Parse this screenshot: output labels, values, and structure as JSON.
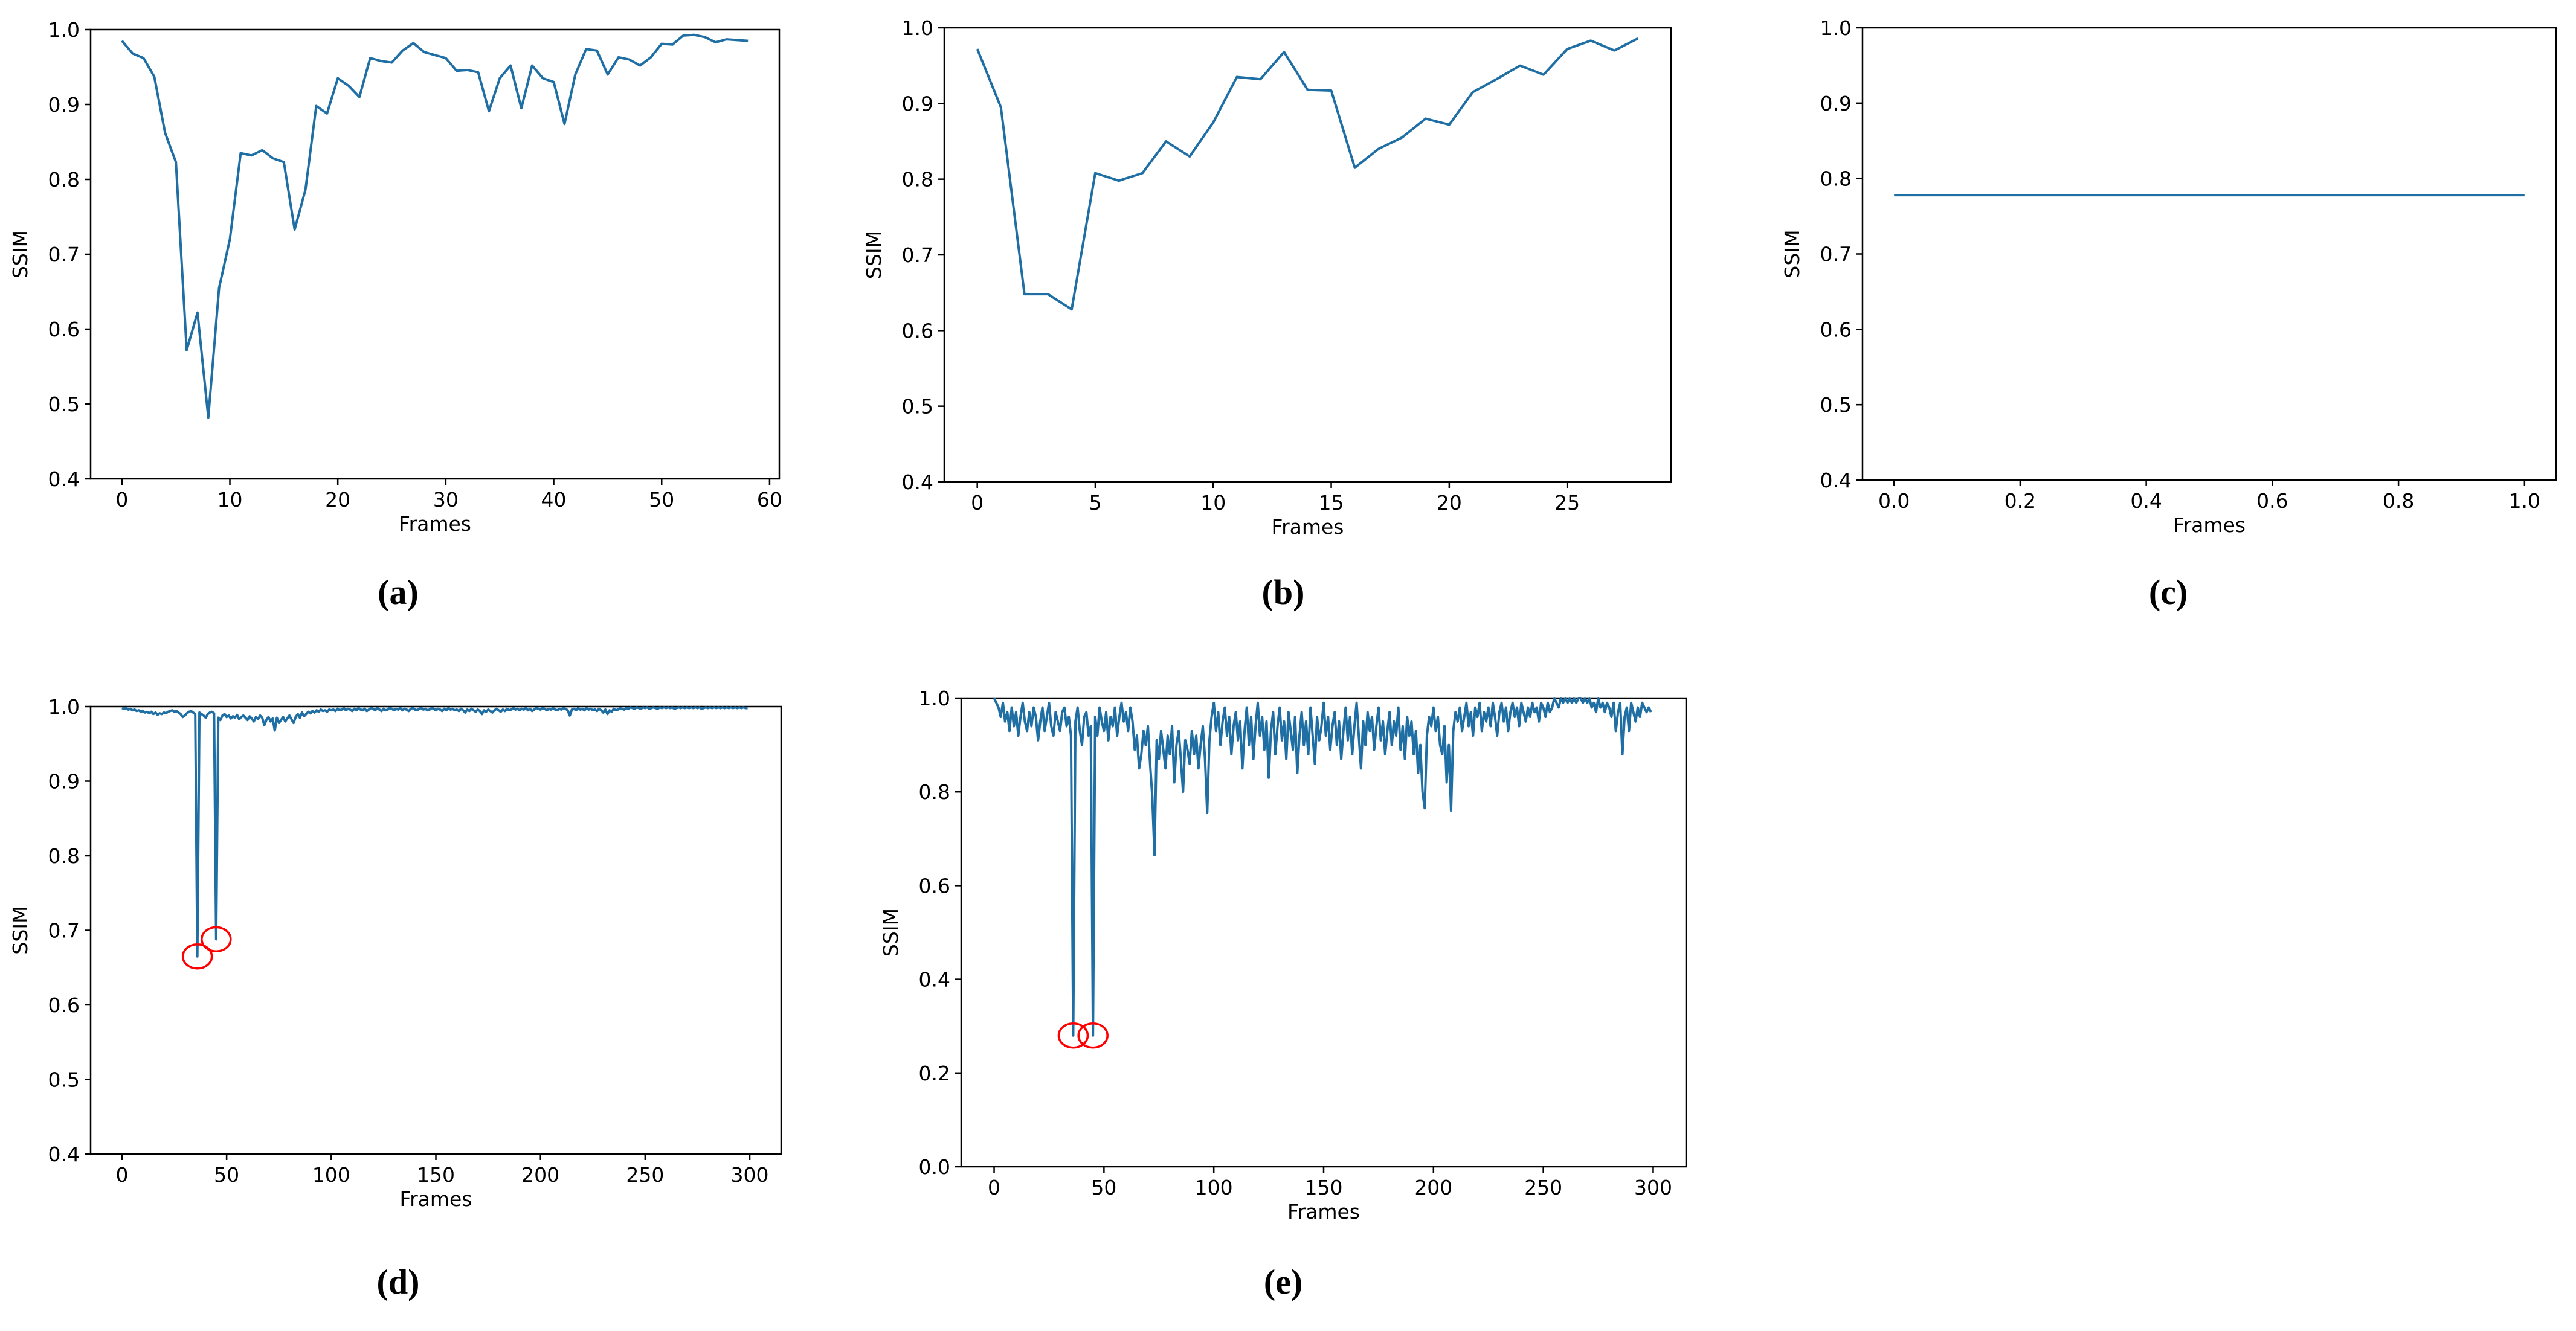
{
  "chart_data": [
    {
      "type": "line",
      "caption": "(a)",
      "xlabel": "Frames",
      "ylabel": "SSIM",
      "color": "#1f6fa5",
      "values": [
        0.985,
        0.968,
        0.962,
        0.937,
        0.862,
        0.823,
        0.572,
        0.622,
        0.482,
        0.655,
        0.72,
        0.835,
        0.832,
        0.839,
        0.828,
        0.823,
        0.733,
        0.786,
        0.898,
        0.888,
        0.935,
        0.925,
        0.91,
        0.962,
        0.958,
        0.956,
        0.972,
        0.982,
        0.97,
        0.966,
        0.962,
        0.945,
        0.946,
        0.943,
        0.891,
        0.935,
        0.952,
        0.895,
        0.952,
        0.935,
        0.93,
        0.874,
        0.94,
        0.974,
        0.972,
        0.94,
        0.963,
        0.96,
        0.952,
        0.963,
        0.981,
        0.98,
        0.992,
        0.993,
        0.99,
        0.983,
        0.987,
        0.986,
        0.985
      ],
      "xlim": [
        -2.9,
        60.9
      ],
      "xticks": [
        0,
        10,
        20,
        30,
        40,
        50,
        60
      ],
      "ylim": [
        0.4,
        1
      ],
      "yticks": [
        0.4,
        0.5,
        0.6,
        0.7,
        0.8,
        0.9,
        {
          "value": 1,
          "label": "1.0"
        }
      ]
    },
    {
      "type": "line",
      "caption": "(b)",
      "xlabel": "Frames",
      "ylabel": "SSIM",
      "color": "#1f6fa5",
      "values": [
        0.972,
        0.895,
        0.648,
        0.648,
        0.628,
        0.808,
        0.798,
        0.808,
        0.85,
        0.83,
        0.875,
        0.935,
        0.932,
        0.968,
        0.918,
        0.917,
        0.815,
        0.84,
        0.855,
        0.88,
        0.872,
        0.915,
        0.932,
        0.95,
        0.938,
        0.972,
        0.983,
        0.97,
        0.986
      ],
      "xlim": [
        -1.4,
        29.4
      ],
      "xticks": [
        0,
        5,
        10,
        15,
        20,
        25
      ],
      "ylim": [
        0.4,
        1
      ],
      "yticks": [
        0.4,
        0.5,
        0.6,
        0.7,
        0.8,
        0.9,
        {
          "value": 1,
          "label": "1.0"
        }
      ]
    },
    {
      "type": "line",
      "caption": "(c)",
      "xlabel": "Frames",
      "ylabel": "SSIM",
      "color": "#1f6fa5",
      "x": [
        0,
        1
      ],
      "values": [
        0.778,
        0.778
      ],
      "xlim": [
        -0.05,
        1.05
      ],
      "xticks": [
        {
          "value": 0,
          "label": "0.0"
        },
        0.2,
        0.4,
        0.6,
        0.8,
        {
          "value": 1,
          "label": "1.0"
        }
      ],
      "ylim": [
        0.4,
        1
      ],
      "yticks": [
        0.4,
        0.5,
        0.6,
        0.7,
        0.8,
        0.9,
        {
          "value": 1,
          "label": "1.0"
        }
      ]
    },
    {
      "type": "line",
      "caption": "(d)",
      "xlabel": "Frames",
      "ylabel": "SSIM",
      "color": "#1f6fa5",
      "circle_color": "#ff0000",
      "circles": [
        {
          "x": 36,
          "y": 0.665
        },
        {
          "x": 45,
          "y": 0.688
        }
      ],
      "values": [
        0.998,
        0.997,
        0.998,
        0.996,
        0.997,
        0.995,
        0.996,
        0.994,
        0.995,
        0.993,
        0.994,
        0.992,
        0.993,
        0.991,
        0.993,
        0.99,
        0.992,
        0.989,
        0.991,
        0.99,
        0.992,
        0.991,
        0.993,
        0.994,
        0.995,
        0.993,
        0.994,
        0.992,
        0.99,
        0.986,
        0.988,
        0.991,
        0.993,
        0.994,
        0.992,
        0.99,
        0.665,
        0.992,
        0.99,
        0.988,
        0.985,
        0.99,
        0.992,
        0.993,
        0.991,
        0.688,
        0.985,
        0.982,
        0.988,
        0.99,
        0.986,
        0.988,
        0.984,
        0.987,
        0.985,
        0.989,
        0.983,
        0.986,
        0.988,
        0.985,
        0.982,
        0.987,
        0.984,
        0.98,
        0.986,
        0.983,
        0.988,
        0.985,
        0.975,
        0.982,
        0.986,
        0.98,
        0.984,
        0.968,
        0.985,
        0.978,
        0.982,
        0.986,
        0.98,
        0.984,
        0.988,
        0.983,
        0.978,
        0.986,
        0.99,
        0.985,
        0.992,
        0.987,
        0.99,
        0.993,
        0.991,
        0.994,
        0.992,
        0.995,
        0.993,
        0.996,
        0.994,
        0.995,
        0.993,
        0.996,
        0.995,
        0.996,
        0.994,
        0.997,
        0.995,
        0.996,
        0.998,
        0.995,
        0.997,
        0.996,
        0.994,
        0.997,
        0.995,
        0.998,
        0.996,
        0.995,
        0.997,
        0.994,
        0.996,
        0.998,
        0.997,
        0.995,
        0.998,
        0.996,
        0.994,
        0.997,
        0.995,
        0.996,
        0.998,
        0.997,
        0.995,
        0.997,
        0.996,
        0.998,
        0.995,
        0.997,
        0.996,
        0.994,
        0.997,
        0.998,
        0.996,
        0.995,
        0.997,
        0.998,
        0.996,
        0.997,
        0.995,
        0.996,
        0.998,
        0.997,
        0.995,
        0.997,
        0.996,
        0.994,
        0.997,
        0.995,
        0.998,
        0.996,
        0.997,
        0.995,
        0.996,
        0.994,
        0.997,
        0.995,
        0.992,
        0.996,
        0.994,
        0.997,
        0.995,
        0.993,
        0.996,
        0.994,
        0.99,
        0.995,
        0.993,
        0.996,
        0.994,
        0.992,
        0.995,
        0.997,
        0.995,
        0.993,
        0.996,
        0.994,
        0.997,
        0.995,
        0.996,
        0.998,
        0.996,
        0.997,
        0.995,
        0.997,
        0.996,
        0.998,
        0.995,
        0.997,
        0.994,
        0.996,
        0.998,
        0.997,
        0.996,
        0.998,
        0.997,
        0.995,
        0.997,
        0.996,
        0.998,
        0.996,
        0.995,
        0.997,
        0.996,
        0.998,
        0.997,
        0.995,
        0.988,
        0.996,
        0.997,
        0.995,
        0.998,
        0.996,
        0.997,
        0.995,
        0.998,
        0.996,
        0.997,
        0.995,
        0.996,
        0.994,
        0.997,
        0.995,
        0.992,
        0.996,
        0.99,
        0.995,
        0.993,
        0.997,
        0.995,
        0.996,
        0.998,
        0.997,
        0.996,
        0.998,
        0.997,
        0.999,
        0.998,
        0.997,
        0.999,
        0.998,
        0.997,
        0.999,
        0.998,
        0.999,
        0.997,
        0.998,
        0.999,
        0.998,
        0.997,
        0.999,
        0.998,
        0.999,
        0.998,
        0.999,
        0.998,
        0.999,
        0.997,
        0.998,
        0.999,
        0.998,
        0.999,
        0.998,
        0.999,
        0.998,
        0.999,
        0.998,
        0.999,
        0.998,
        0.999,
        0.997,
        0.998,
        0.999,
        0.998,
        0.999,
        0.998,
        0.999,
        0.998,
        0.999,
        0.998,
        0.999,
        0.998,
        0.999,
        0.998,
        0.999,
        0.998,
        0.999,
        0.998,
        0.999,
        0.998,
        0.999,
        0.998,
        0.998
      ],
      "xlim": [
        -15,
        315
      ],
      "xticks": [
        0,
        50,
        100,
        150,
        200,
        250,
        300
      ],
      "ylim": [
        0.4,
        1
      ],
      "yticks": [
        0.4,
        0.5,
        0.6,
        0.7,
        0.8,
        0.9,
        {
          "value": 1,
          "label": "1.0"
        }
      ]
    },
    {
      "type": "line",
      "caption": "(e)",
      "xlabel": "Frames",
      "ylabel": "SSIM",
      "color": "#1f6fa5",
      "circle_color": "#ff0000",
      "circles": [
        {
          "x": 36,
          "y": 0.28
        },
        {
          "x": 45,
          "y": 0.28
        }
      ],
      "values": [
        1.0,
        0.99,
        0.98,
        0.96,
        0.99,
        0.95,
        0.97,
        0.93,
        0.98,
        0.94,
        0.97,
        0.92,
        0.96,
        0.99,
        0.95,
        0.93,
        0.97,
        0.94,
        0.98,
        0.96,
        0.91,
        0.95,
        0.98,
        0.93,
        0.96,
        0.99,
        0.94,
        0.92,
        0.97,
        0.95,
        0.93,
        0.97,
        0.98,
        0.94,
        0.96,
        0.92,
        0.28,
        0.95,
        0.98,
        0.93,
        0.9,
        0.96,
        0.97,
        0.92,
        0.94,
        0.28,
        0.96,
        0.92,
        0.98,
        0.95,
        0.93,
        0.97,
        0.91,
        0.96,
        0.94,
        0.98,
        0.92,
        0.96,
        0.99,
        0.95,
        0.97,
        0.93,
        0.98,
        0.95,
        0.89,
        0.92,
        0.85,
        0.88,
        0.93,
        0.9,
        0.94,
        0.86,
        0.79,
        0.665,
        0.91,
        0.87,
        0.93,
        0.89,
        0.85,
        0.92,
        0.88,
        0.94,
        0.82,
        0.9,
        0.93,
        0.87,
        0.8,
        0.91,
        0.89,
        0.86,
        0.93,
        0.88,
        0.92,
        0.85,
        0.9,
        0.94,
        0.87,
        0.755,
        0.91,
        0.96,
        0.99,
        0.93,
        0.97,
        0.9,
        0.95,
        0.98,
        0.92,
        0.96,
        0.88,
        0.94,
        0.97,
        0.91,
        0.95,
        0.85,
        0.93,
        0.98,
        0.9,
        0.96,
        0.87,
        0.94,
        0.99,
        0.92,
        0.96,
        0.89,
        0.95,
        0.83,
        0.93,
        0.97,
        0.88,
        0.94,
        0.98,
        0.91,
        0.95,
        0.87,
        0.97,
        0.93,
        0.89,
        0.96,
        0.84,
        0.92,
        0.97,
        0.9,
        0.95,
        0.88,
        0.98,
        0.92,
        0.86,
        0.96,
        0.91,
        0.94,
        0.99,
        0.92,
        0.96,
        0.89,
        0.94,
        0.97,
        0.9,
        0.95,
        0.87,
        0.93,
        0.98,
        0.91,
        0.96,
        0.88,
        0.94,
        0.99,
        0.92,
        0.85,
        0.95,
        0.9,
        0.97,
        0.93,
        0.96,
        0.89,
        0.94,
        0.98,
        0.91,
        0.95,
        0.88,
        0.93,
        0.97,
        0.9,
        0.95,
        0.92,
        0.98,
        0.89,
        0.94,
        0.87,
        0.96,
        0.92,
        0.95,
        0.88,
        0.93,
        0.84,
        0.9,
        0.8,
        0.765,
        0.92,
        0.96,
        0.94,
        0.98,
        0.93,
        0.96,
        0.9,
        0.88,
        0.94,
        0.82,
        0.9,
        0.76,
        0.93,
        0.97,
        0.95,
        0.98,
        0.93,
        0.96,
        0.99,
        0.94,
        0.97,
        0.92,
        0.98,
        0.96,
        0.99,
        0.93,
        0.97,
        0.95,
        0.98,
        0.94,
        0.99,
        0.96,
        0.92,
        0.97,
        0.99,
        0.95,
        0.98,
        0.93,
        0.97,
        0.99,
        0.96,
        0.98,
        0.94,
        0.99,
        0.97,
        0.95,
        0.98,
        0.96,
        0.99,
        0.97,
        0.98,
        0.95,
        0.99,
        0.98,
        0.96,
        0.99,
        0.97,
        0.98,
        1.0,
        0.99,
        0.98,
        1.0,
        0.99,
        1.0,
        0.99,
        1.0,
        0.99,
        1.0,
        0.99,
        1.0,
        1.0,
        0.99,
        1.0,
        0.99,
        1.0,
        0.98,
        0.99,
        0.97,
        1.0,
        0.98,
        0.99,
        0.97,
        0.99,
        0.98,
        0.96,
        0.99,
        0.93,
        0.97,
        0.99,
        0.88,
        0.96,
        0.98,
        0.93,
        0.99,
        0.97,
        0.95,
        0.98,
        0.96,
        0.99,
        0.98,
        0.97,
        0.98,
        0.97
      ],
      "xlim": [
        -15,
        315
      ],
      "xticks": [
        0,
        50,
        100,
        150,
        200,
        250,
        300
      ],
      "ylim": [
        0,
        1
      ],
      "yticks": [
        {
          "value": 0,
          "label": "0.0"
        },
        0.2,
        0.4,
        0.6,
        0.8,
        {
          "value": 1,
          "label": "1.0"
        }
      ]
    }
  ]
}
